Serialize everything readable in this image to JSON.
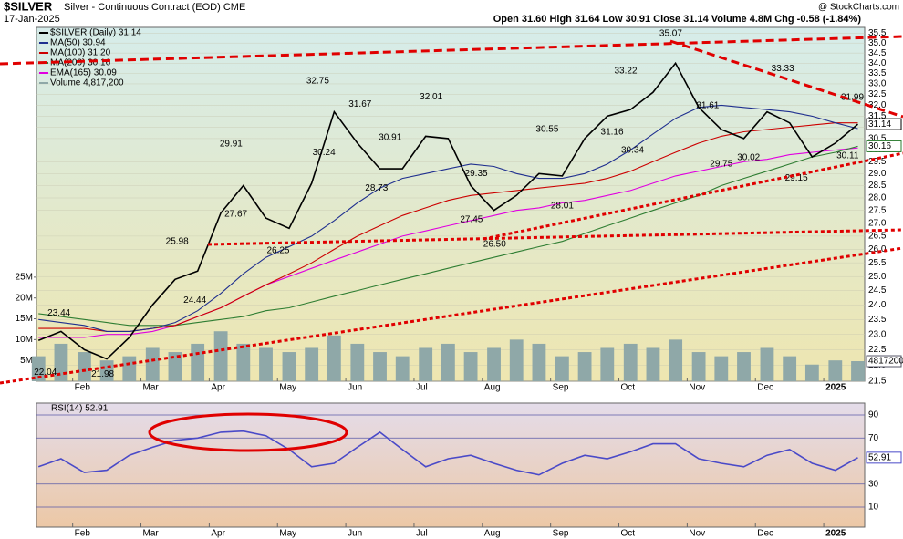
{
  "header": {
    "title": "$SILVER",
    "subtitle": "Silver - Continuous Contract (EOD) CME",
    "date": "17-Jan-2025",
    "quote": "Open 31.60  High 31.64  Low 30.91  Close 31.14  Volume 4.8M  Chg -0.58 (-1.84%)",
    "watermark": "@ StockCharts.com"
  },
  "chart_data": [
    {
      "type": "line",
      "log": true,
      "xlim": [
        0.47,
        12.6
      ],
      "ylim": [
        21.5,
        35.8
      ],
      "y2lim": [
        0,
        85000000
      ],
      "xticks": [
        {
          "value": 1,
          "label": "Feb"
        },
        {
          "value": 2,
          "label": "Mar"
        },
        {
          "value": 3,
          "label": "Apr"
        },
        {
          "value": 4,
          "label": "May"
        },
        {
          "value": 5,
          "label": "Jun"
        },
        {
          "value": 6,
          "label": "Jul"
        },
        {
          "value": 7,
          "label": "Aug"
        },
        {
          "value": 8,
          "label": "Sep"
        },
        {
          "value": 9,
          "label": "Oct"
        },
        {
          "value": 10,
          "label": "Nov"
        },
        {
          "value": 11,
          "label": "Dec"
        },
        {
          "value": 12,
          "label": "2025"
        }
      ],
      "yticks": [
        21.5,
        {
          "value": 22,
          "label": "22.0"
        },
        22.5,
        {
          "value": 23,
          "label": "23.0"
        },
        23.5,
        {
          "value": 24,
          "label": "24.0"
        },
        24.5,
        {
          "value": 25,
          "label": "25.0"
        },
        25.5,
        {
          "value": 26,
          "label": "26.0"
        },
        26.5,
        {
          "value": 27,
          "label": "27.0"
        },
        27.5,
        {
          "value": 28,
          "label": "28.0"
        },
        28.5,
        {
          "value": 29,
          "label": "29.0"
        },
        29.5,
        {
          "value": 30,
          "label": "30.0"
        },
        30.5,
        {
          "value": 31,
          "label": "31.0"
        },
        31.5,
        {
          "value": 32,
          "label": "32.0"
        },
        32.5,
        {
          "value": 33,
          "label": "33.0"
        },
        33.5,
        {
          "value": 34,
          "label": "34.0"
        },
        34.5,
        {
          "value": 35,
          "label": "35.0"
        },
        35.5
      ],
      "y2ticks": [
        {
          "value": 5000000,
          "label": "5M"
        },
        {
          "value": 10000000,
          "label": "10M"
        },
        {
          "value": 15000000,
          "label": "15M"
        },
        {
          "value": 20000000,
          "label": "20M"
        },
        {
          "value": 25000000,
          "label": "25M"
        }
      ],
      "x": [
        0.5,
        0.83,
        1.17,
        1.5,
        1.83,
        2.17,
        2.5,
        2.83,
        3.17,
        3.5,
        3.83,
        4.17,
        4.5,
        4.83,
        5.17,
        5.5,
        5.83,
        6.17,
        6.5,
        6.83,
        7.17,
        7.5,
        7.83,
        8.17,
        8.5,
        8.83,
        9.17,
        9.5,
        9.83,
        10.17,
        10.5,
        10.83,
        11.17,
        11.5,
        11.83,
        12.17,
        12.5
      ],
      "series": [
        {
          "name": "$SILVER (Daily) 31.14",
          "color": "#000000",
          "values": [
            22.8,
            23.1,
            22.5,
            22.2,
            22.9,
            24.0,
            24.9,
            25.2,
            27.4,
            28.5,
            27.2,
            26.8,
            28.6,
            31.7,
            30.3,
            29.2,
            29.2,
            30.6,
            30.5,
            28.5,
            27.5,
            28.1,
            29.0,
            28.9,
            30.5,
            31.5,
            31.8,
            32.6,
            34.0,
            31.9,
            30.9,
            30.5,
            31.7,
            31.2,
            29.7,
            30.3,
            31.14
          ]
        },
        {
          "name": "MA(50) 30.94",
          "color": "#1f2f8f",
          "values": [
            23.5,
            23.4,
            23.3,
            23.1,
            23.1,
            23.2,
            23.4,
            23.8,
            24.4,
            25.1,
            25.7,
            26.1,
            26.5,
            27.1,
            27.8,
            28.4,
            28.8,
            29.0,
            29.2,
            29.4,
            29.3,
            29.0,
            28.8,
            28.8,
            29.0,
            29.4,
            30.0,
            30.7,
            31.4,
            31.9,
            32.0,
            31.9,
            31.8,
            31.7,
            31.5,
            31.2,
            30.94
          ]
        },
        {
          "name": "MA(100) 31.20",
          "color": "#cc0000",
          "values": [
            23.2,
            23.2,
            23.2,
            23.1,
            23.1,
            23.2,
            23.3,
            23.6,
            23.9,
            24.3,
            24.7,
            25.1,
            25.5,
            26.0,
            26.5,
            26.9,
            27.3,
            27.6,
            27.9,
            28.1,
            28.2,
            28.3,
            28.4,
            28.5,
            28.6,
            28.8,
            29.1,
            29.5,
            29.9,
            30.3,
            30.6,
            30.8,
            30.9,
            31.0,
            31.1,
            31.2,
            31.2
          ]
        },
        {
          "name": "MA(200) 30.16",
          "color": "#2e7d32",
          "values": [
            23.7,
            23.6,
            23.5,
            23.4,
            23.3,
            23.3,
            23.3,
            23.4,
            23.5,
            23.6,
            23.8,
            23.9,
            24.1,
            24.3,
            24.5,
            24.7,
            24.9,
            25.1,
            25.3,
            25.5,
            25.7,
            25.9,
            26.1,
            26.3,
            26.6,
            26.9,
            27.2,
            27.5,
            27.8,
            28.1,
            28.5,
            28.8,
            29.1,
            29.4,
            29.7,
            29.9,
            30.16
          ]
        },
        {
          "name": "EMA(165) 30.09",
          "color": "#e000e0",
          "values": [
            22.9,
            22.9,
            22.9,
            23.0,
            23.0,
            23.1,
            23.3,
            23.6,
            23.9,
            24.3,
            24.7,
            25.0,
            25.3,
            25.6,
            25.9,
            26.2,
            26.5,
            26.7,
            26.9,
            27.1,
            27.3,
            27.5,
            27.6,
            27.8,
            27.9,
            28.1,
            28.3,
            28.6,
            28.9,
            29.1,
            29.3,
            29.5,
            29.6,
            29.8,
            29.9,
            30.0,
            30.09
          ]
        },
        {
          "name": "Volume 4,817,200",
          "color": "#8fa8a8",
          "type": "bar",
          "axis": "y2",
          "values": [
            6000000,
            9000000,
            7000000,
            5000000,
            6000000,
            8000000,
            7000000,
            9000000,
            12000000,
            9000000,
            8000000,
            7000000,
            8000000,
            11000000,
            9000000,
            7000000,
            6000000,
            8000000,
            9000000,
            7000000,
            8000000,
            10000000,
            9000000,
            6000000,
            7000000,
            8000000,
            9000000,
            8000000,
            10000000,
            7000000,
            6000000,
            7000000,
            8000000,
            6000000,
            4000000,
            5000000,
            4817200
          ]
        }
      ],
      "highs": {
        "x": [
          0.8,
          2.53,
          3.32,
          4.59,
          5.21,
          6.25,
          7.95,
          9.1,
          9.76,
          10.3,
          11.4,
          12.42
        ],
        "values": [
          23.44,
          25.98,
          29.91,
          32.75,
          31.67,
          32.01,
          30.55,
          33.22,
          35.07,
          31.61,
          33.33,
          31.99
        ]
      },
      "lows": {
        "x": [
          0.6,
          1.44,
          2.79,
          3.39,
          4.01,
          4.68,
          5.65,
          5.45,
          6.91,
          6.84,
          7.18,
          8.17,
          8.9,
          9.2,
          10.5,
          10.9,
          11.6,
          12.35
        ],
        "values": [
          22.04,
          21.98,
          24.44,
          27.67,
          26.25,
          30.24,
          30.91,
          28.73,
          29.35,
          27.45,
          26.5,
          28.01,
          31.16,
          30.34,
          29.75,
          30.02,
          29.15,
          30.11
        ],
        "value_labels": [
          "22.04",
          "21.98",
          "24.44",
          "27.67",
          "26.25",
          "30.24",
          "30.91",
          "28.73",
          "29.35",
          "27.45",
          "26.50",
          "28.01",
          "31.16",
          "30.34",
          "29.75",
          "30.02",
          "29.15",
          "30.11"
        ]
      }
    },
    {
      "type": "line",
      "title": "RSI(14) 52.91",
      "xlim": [
        0.47,
        12.6
      ],
      "ylim": [
        -7.4,
        100.3
      ],
      "xticks": [
        {
          "value": 1,
          "label": "Feb"
        },
        {
          "value": 2,
          "label": "Mar"
        },
        {
          "value": 3,
          "label": "Apr"
        },
        {
          "value": 4,
          "label": "May"
        },
        {
          "value": 5,
          "label": "Jun"
        },
        {
          "value": 6,
          "label": "Jul"
        },
        {
          "value": 7,
          "label": "Aug"
        },
        {
          "value": 8,
          "label": "Sep"
        },
        {
          "value": 9,
          "label": "Oct"
        },
        {
          "value": 10,
          "label": "Nov"
        },
        {
          "value": 11,
          "label": "Dec"
        },
        {
          "value": 12,
          "label": "2025"
        }
      ],
      "yticks": [
        10,
        30,
        50,
        70,
        90
      ],
      "x": [
        0.5,
        0.83,
        1.17,
        1.5,
        1.83,
        2.17,
        2.5,
        2.83,
        3.17,
        3.5,
        3.83,
        4.17,
        4.5,
        4.83,
        5.17,
        5.5,
        5.83,
        6.17,
        6.5,
        6.83,
        7.17,
        7.5,
        7.83,
        8.17,
        8.5,
        8.83,
        9.17,
        9.5,
        9.83,
        10.17,
        10.5,
        10.83,
        11.17,
        11.5,
        11.83,
        12.17,
        12.5
      ],
      "series": [
        {
          "name": "RSI(14)",
          "color": "#4a4ac8",
          "values": [
            45,
            52,
            40,
            42,
            55,
            62,
            68,
            70,
            75,
            76,
            72,
            60,
            45,
            48,
            62,
            75,
            60,
            45,
            52,
            55,
            48,
            42,
            38,
            48,
            55,
            52,
            58,
            65,
            65,
            52,
            48,
            45,
            55,
            60,
            48,
            42,
            52.91
          ]
        }
      ]
    }
  ]
}
